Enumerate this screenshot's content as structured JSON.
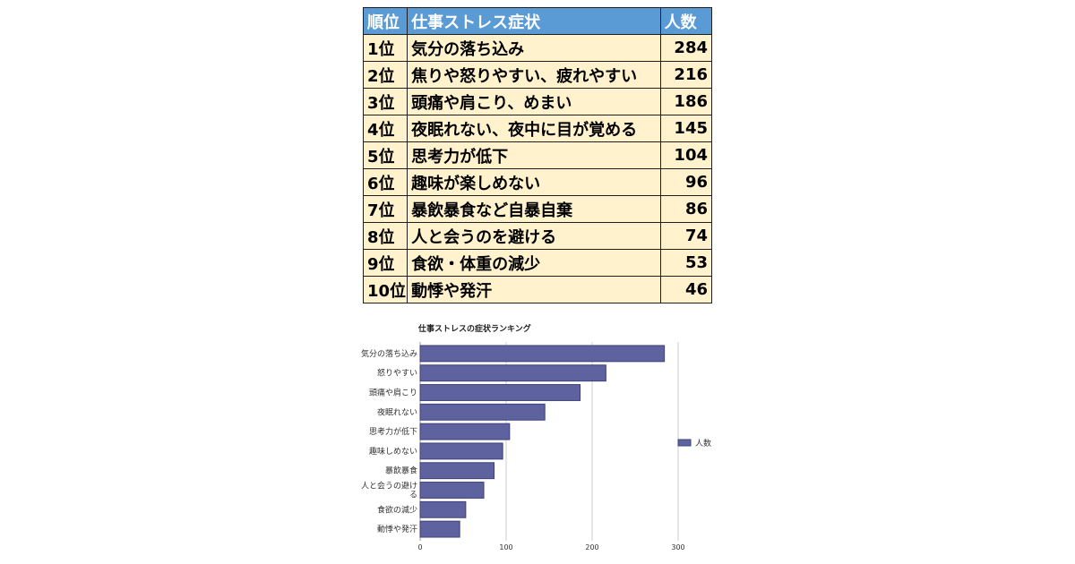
{
  "table": {
    "headers": {
      "rank": "順位",
      "symptom": "仕事ストレス症状",
      "count": "人数"
    },
    "rows": [
      {
        "rank": "1位",
        "symptom": "気分の落ち込み",
        "count": "284"
      },
      {
        "rank": "2位",
        "symptom": "焦りや怒りやすい、疲れやすい",
        "count": "216"
      },
      {
        "rank": "3位",
        "symptom": "頭痛や肩こり、めまい",
        "count": "186"
      },
      {
        "rank": "4位",
        "symptom": "夜眠れない、夜中に目が覚める",
        "count": "145"
      },
      {
        "rank": "5位",
        "symptom": "思考力が低下",
        "count": "104"
      },
      {
        "rank": "6位",
        "symptom": "趣味が楽しめない",
        "count": "96"
      },
      {
        "rank": "7位",
        "symptom": "暴飲暴食など自暴自棄",
        "count": "86"
      },
      {
        "rank": "8位",
        "symptom": "人と会うのを避ける",
        "count": "74"
      },
      {
        "rank": "9位",
        "symptom": "食欲・体重の減少",
        "count": "53"
      },
      {
        "rank": "10位",
        "symptom": "動悸や発汗",
        "count": "46"
      }
    ]
  },
  "colors": {
    "header_bg": "#5b9bd5",
    "row_bg": "#fff2cc",
    "bar": "#5e63a0",
    "bar_stroke": "#3d417a",
    "grid": "#cccccc"
  },
  "chart_data": {
    "type": "bar",
    "orientation": "horizontal",
    "title": "仕事ストレスの症状ランキング",
    "categories": [
      "気分の落ち込み",
      "怒りやすい",
      "頭痛や肩こり",
      "夜眠れない",
      "思考力が低下",
      "趣味しめない",
      "暴飲暴食",
      "人と会うの避ける",
      "食欲の減少",
      "動悸や発汗"
    ],
    "series": [
      {
        "name": "人数",
        "values": [
          284,
          216,
          186,
          145,
          104,
          96,
          86,
          74,
          53,
          46
        ]
      }
    ],
    "xlim": [
      0,
      300
    ],
    "xticks": [
      0,
      100,
      200,
      300
    ],
    "grid": true,
    "legend_position": "right"
  }
}
